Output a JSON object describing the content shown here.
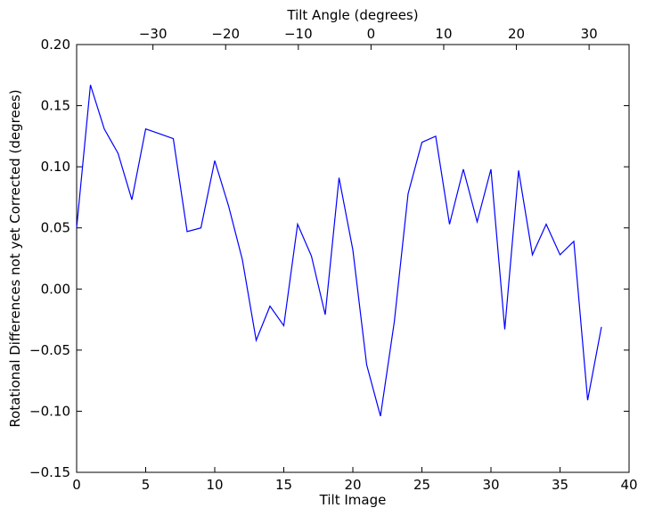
{
  "chart_data": {
    "type": "line",
    "title": "",
    "xlabel": "Tilt Image",
    "ylabel": "Rotational Differences not yet Corrected (degrees)",
    "top_xlabel": "Tilt Angle (degrees)",
    "xlim": [
      0,
      40
    ],
    "ylim": [
      -0.15,
      0.2
    ],
    "top_xlim": [
      -40.5,
      35.5
    ],
    "x_ticks": [
      0,
      5,
      10,
      15,
      20,
      25,
      30,
      35,
      40
    ],
    "x_tick_labels": [
      "0",
      "5",
      "10",
      "15",
      "20",
      "25",
      "30",
      "35",
      "40"
    ],
    "y_ticks": [
      -0.15,
      -0.1,
      -0.05,
      0.0,
      0.05,
      0.1,
      0.15,
      0.2
    ],
    "y_tick_labels": [
      "−0.15",
      "−0.10",
      "−0.05",
      "0.00",
      "0.05",
      "0.10",
      "0.15",
      "0.20"
    ],
    "top_ticks": [
      -30,
      -20,
      -10,
      0,
      10,
      20,
      30
    ],
    "top_tick_labels": [
      "−30",
      "−20",
      "−10",
      "0",
      "10",
      "20",
      "30"
    ],
    "grid": false,
    "line_color": "#0000ff",
    "series": [
      {
        "x": [
          0,
          1,
          2,
          3,
          4,
          5,
          6,
          7,
          8,
          9,
          10,
          11,
          12,
          13,
          14,
          15,
          16,
          17,
          18,
          19,
          20,
          21,
          22,
          23,
          24,
          25,
          26,
          27,
          28,
          29,
          30,
          31,
          32,
          33,
          34,
          35,
          36,
          37,
          38
        ],
        "values": [
          0.05,
          0.167,
          0.131,
          0.111,
          0.073,
          0.131,
          0.127,
          0.123,
          0.047,
          0.05,
          0.105,
          0.068,
          0.024,
          -0.042,
          -0.014,
          -0.03,
          0.053,
          0.027,
          -0.021,
          0.091,
          0.032,
          -0.062,
          -0.104,
          -0.027,
          0.078,
          0.12,
          0.125,
          0.053,
          0.098,
          0.055,
          0.098,
          -0.033,
          0.097,
          0.028,
          0.053,
          0.028,
          0.039,
          -0.091,
          -0.031
        ]
      }
    ]
  }
}
